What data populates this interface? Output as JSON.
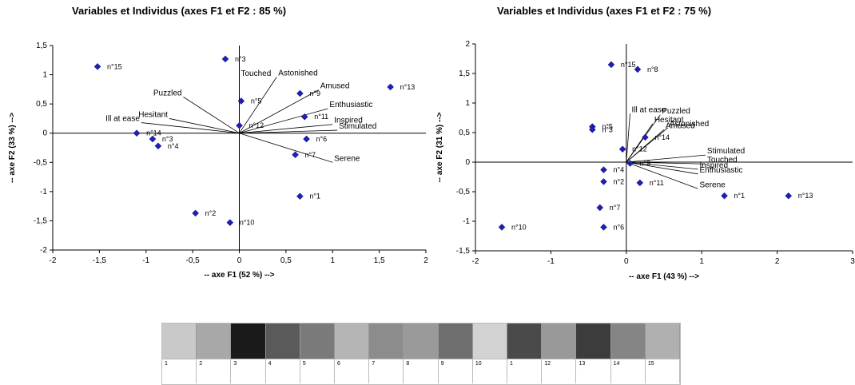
{
  "chart_data": [
    {
      "type": "scatter",
      "title": "Variables et Individus (axes F1 et F2 : 85 %)",
      "xlabel": "-- axe F1 (52 %) -->",
      "ylabel": "-- axe F2 (33 %) -->",
      "xlim": [
        -2,
        2
      ],
      "ylim": [
        -2,
        1.5
      ],
      "xticks": [
        "-2",
        "-1,5",
        "-1",
        "-0,5",
        "0",
        "0,5",
        "1",
        "1,5",
        "2"
      ],
      "yticks": [
        "-2",
        "-1,5",
        "-1",
        "-0,5",
        "0",
        "0,5",
        "1",
        "1,5"
      ],
      "marker_color": "#1f1fb4",
      "points": [
        {
          "label": "n°15",
          "x": -1.52,
          "y": 1.14
        },
        {
          "label": "n°3",
          "x": -0.15,
          "y": 1.27
        },
        {
          "label": "n°5",
          "x": 0.02,
          "y": 0.55
        },
        {
          "label": "n°9",
          "x": 0.65,
          "y": 0.68
        },
        {
          "label": "n°13",
          "x": 1.62,
          "y": 0.79
        },
        {
          "label": "n°11",
          "x": 0.7,
          "y": 0.28
        },
        {
          "label": "n°12",
          "x": 0.0,
          "y": 0.13
        },
        {
          "label": "n°14",
          "x": -1.1,
          "y": 0.0
        },
        {
          "label": "n°6",
          "x": 0.72,
          "y": -0.1
        },
        {
          "label": "n°3",
          "x": -0.93,
          "y": -0.1
        },
        {
          "label": "n°4",
          "x": -0.87,
          "y": -0.22
        },
        {
          "label": "n°7",
          "x": 0.6,
          "y": -0.37
        },
        {
          "label": "n°1",
          "x": 0.65,
          "y": -1.08
        },
        {
          "label": "n°2",
          "x": -0.47,
          "y": -1.37
        },
        {
          "label": "n°10",
          "x": -0.1,
          "y": -1.53
        }
      ],
      "vectors": [
        {
          "label": "Touched",
          "x": 0.0,
          "y": 0.95
        },
        {
          "label": "Astonished",
          "x": 0.4,
          "y": 0.96
        },
        {
          "label": "Amused",
          "x": 0.85,
          "y": 0.74
        },
        {
          "label": "Puzzled",
          "x": -0.6,
          "y": 0.62
        },
        {
          "label": "Enthusiastic",
          "x": 0.95,
          "y": 0.42
        },
        {
          "label": "Inspired",
          "x": 1.0,
          "y": 0.15
        },
        {
          "label": "Stimulated",
          "x": 1.05,
          "y": 0.05
        },
        {
          "label": "Hesitant",
          "x": -0.75,
          "y": 0.25
        },
        {
          "label": "Ill at ease",
          "x": -1.05,
          "y": 0.18
        },
        {
          "label": "Serene",
          "x": 1.0,
          "y": -0.5
        }
      ]
    },
    {
      "type": "scatter",
      "title": "Variables et Individus (axes F1 et F2 : 75 %)",
      "xlabel": "-- axe F1 (43 %) -->",
      "ylabel": "-- axe F2 (31 %) -->",
      "xlim": [
        -2,
        3
      ],
      "ylim": [
        -1.5,
        2
      ],
      "xticks": [
        "-2",
        "-1",
        "0",
        "1",
        "2",
        "3"
      ],
      "yticks": [
        "-1,5",
        "-1",
        "-0,5",
        "0",
        "0,5",
        "1",
        "1,5",
        "2"
      ],
      "marker_color": "#1f1fb4",
      "points": [
        {
          "label": "n°15",
          "x": -0.2,
          "y": 1.65
        },
        {
          "label": "n°8",
          "x": 0.15,
          "y": 1.57
        },
        {
          "label": "n°5",
          "x": -0.45,
          "y": 0.6
        },
        {
          "label": "n°3",
          "x": -0.45,
          "y": 0.55
        },
        {
          "label": "n°14",
          "x": 0.25,
          "y": 0.42
        },
        {
          "label": "n°12",
          "x": -0.05,
          "y": 0.22
        },
        {
          "label": "n°9",
          "x": 0.05,
          "y": -0.02
        },
        {
          "label": "n°4",
          "x": -0.3,
          "y": -0.13
        },
        {
          "label": "n°2",
          "x": -0.3,
          "y": -0.33
        },
        {
          "label": "n°11",
          "x": 0.18,
          "y": -0.35
        },
        {
          "label": "n°1",
          "x": 1.3,
          "y": -0.57
        },
        {
          "label": "n°13",
          "x": 2.15,
          "y": -0.57
        },
        {
          "label": "n°7",
          "x": -0.35,
          "y": -0.77
        },
        {
          "label": "n°6",
          "x": -0.3,
          "y": -1.1
        },
        {
          "label": "n°10",
          "x": -1.65,
          "y": -1.1
        }
      ],
      "vectors": [
        {
          "label": "Ill at ease",
          "x": 0.05,
          "y": 0.82
        },
        {
          "label": "Puzzled",
          "x": 0.45,
          "y": 0.8
        },
        {
          "label": "Hesitant",
          "x": 0.35,
          "y": 0.65
        },
        {
          "label": "Astonished",
          "x": 0.55,
          "y": 0.58
        },
        {
          "label": "Amused",
          "x": 0.5,
          "y": 0.55
        },
        {
          "label": "Stimulated",
          "x": 1.05,
          "y": 0.12
        },
        {
          "label": "Touched",
          "x": 1.05,
          "y": -0.03
        },
        {
          "label": "Inspired",
          "x": 0.95,
          "y": -0.12
        },
        {
          "label": "Enthusiastic",
          "x": 0.95,
          "y": -0.2
        },
        {
          "label": "Serene",
          "x": 0.95,
          "y": -0.45
        }
      ]
    }
  ],
  "strip": {
    "labels": [
      "1",
      "2",
      "3",
      "4",
      "5",
      "6",
      "7",
      "8",
      "9",
      "10",
      "1",
      "12",
      "13",
      "14",
      "15"
    ],
    "shades": [
      "#c9c9c9",
      "#a8a8a8",
      "#1a1a1a",
      "#5a5a5a",
      "#7a7a7a",
      "#b5b5b5",
      "#8c8c8c",
      "#9a9a9a",
      "#6e6e6e",
      "#d2d2d2",
      "#4a4a4a",
      "#999999",
      "#3c3c3c",
      "#858585",
      "#b0b0b0"
    ]
  }
}
